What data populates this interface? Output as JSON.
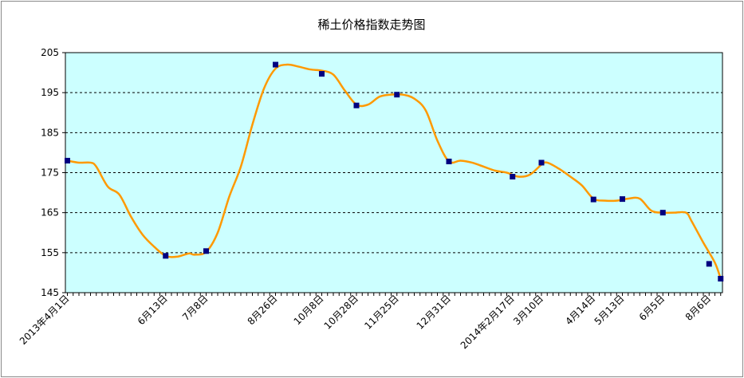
{
  "chart_data": {
    "type": "line",
    "title": "稀土价格指数走势图",
    "xlabel": "",
    "ylabel": "",
    "ylim": [
      145,
      205
    ],
    "yticks": [
      "145",
      "155",
      "165",
      "175",
      "185",
      "195",
      "205"
    ],
    "grid": "horizontal dashed",
    "legend": "none",
    "colors": {
      "line": "#FF9900",
      "marker": "#000080",
      "plot_bg": "#CCFFFF"
    },
    "n_points": 113,
    "x_labels": [
      {
        "i": 0,
        "text": "2013年4月1日"
      },
      {
        "i": 17,
        "text": "6月13日"
      },
      {
        "i": 24,
        "text": "7月8日"
      },
      {
        "i": 36,
        "text": "8月26日"
      },
      {
        "i": 44,
        "text": "10月8日"
      },
      {
        "i": 50,
        "text": "10月28日"
      },
      {
        "i": 57,
        "text": "11月25日"
      },
      {
        "i": 66,
        "text": "12月31日"
      },
      {
        "i": 77,
        "text": "2014年2月17日"
      },
      {
        "i": 82,
        "text": "3月10日"
      },
      {
        "i": 91,
        "text": "4月14日"
      },
      {
        "i": 96,
        "text": "5月13日"
      },
      {
        "i": 103,
        "text": "6月5日"
      },
      {
        "i": 111,
        "text": "8月6日"
      }
    ],
    "series": [
      {
        "values": [
          [
            0,
            178
          ],
          [
            2,
            177.5
          ],
          [
            4,
            177.5
          ],
          [
            5,
            176.5
          ],
          [
            7,
            171.5
          ],
          [
            9,
            169.5
          ],
          [
            11,
            164
          ],
          [
            13,
            159.5
          ],
          [
            15,
            156.5
          ],
          [
            17,
            154.2
          ],
          [
            19,
            154
          ],
          [
            21,
            154.8
          ],
          [
            22,
            154.5
          ],
          [
            24,
            155.2
          ],
          [
            26,
            160
          ],
          [
            28,
            169
          ],
          [
            30,
            176.5
          ],
          [
            32,
            187
          ],
          [
            34,
            196
          ],
          [
            36,
            201
          ],
          [
            38,
            202
          ],
          [
            40,
            201.5
          ],
          [
            42,
            200.8
          ],
          [
            44,
            200.5
          ],
          [
            46,
            199.5
          ],
          [
            48,
            195.5
          ],
          [
            50,
            192
          ],
          [
            52,
            192
          ],
          [
            54,
            194
          ],
          [
            56,
            194.5
          ],
          [
            58,
            194.5
          ],
          [
            60,
            193.5
          ],
          [
            62,
            190.5
          ],
          [
            64,
            183
          ],
          [
            66,
            177.8
          ],
          [
            68,
            178
          ],
          [
            70,
            177.5
          ],
          [
            72,
            176.5
          ],
          [
            74,
            175.5
          ],
          [
            76,
            175
          ],
          [
            78,
            174
          ],
          [
            80,
            174.5
          ],
          [
            82,
            177
          ],
          [
            83,
            177.5
          ],
          [
            85,
            176
          ],
          [
            87,
            174
          ],
          [
            89,
            171.8
          ],
          [
            91,
            168.5
          ],
          [
            93,
            168
          ],
          [
            95,
            168
          ],
          [
            97,
            168.5
          ],
          [
            99,
            168.5
          ],
          [
            101,
            165.5
          ],
          [
            103,
            165
          ],
          [
            105,
            165
          ],
          [
            107,
            165
          ],
          [
            108,
            162.8
          ],
          [
            110,
            157.5
          ],
          [
            112,
            152.5
          ],
          [
            113,
            148.5
          ]
        ],
        "markers": [
          [
            0,
            178
          ],
          [
            17,
            154.2
          ],
          [
            24,
            155.4
          ],
          [
            36,
            202
          ],
          [
            44,
            199.7
          ],
          [
            50,
            191.8
          ],
          [
            57,
            194.5
          ],
          [
            66,
            177.8
          ],
          [
            77,
            174
          ],
          [
            82,
            177.5
          ],
          [
            91,
            168.3
          ],
          [
            96,
            168.4
          ],
          [
            103,
            165
          ],
          [
            111,
            152.2
          ],
          [
            113,
            148.5
          ]
        ]
      }
    ]
  }
}
